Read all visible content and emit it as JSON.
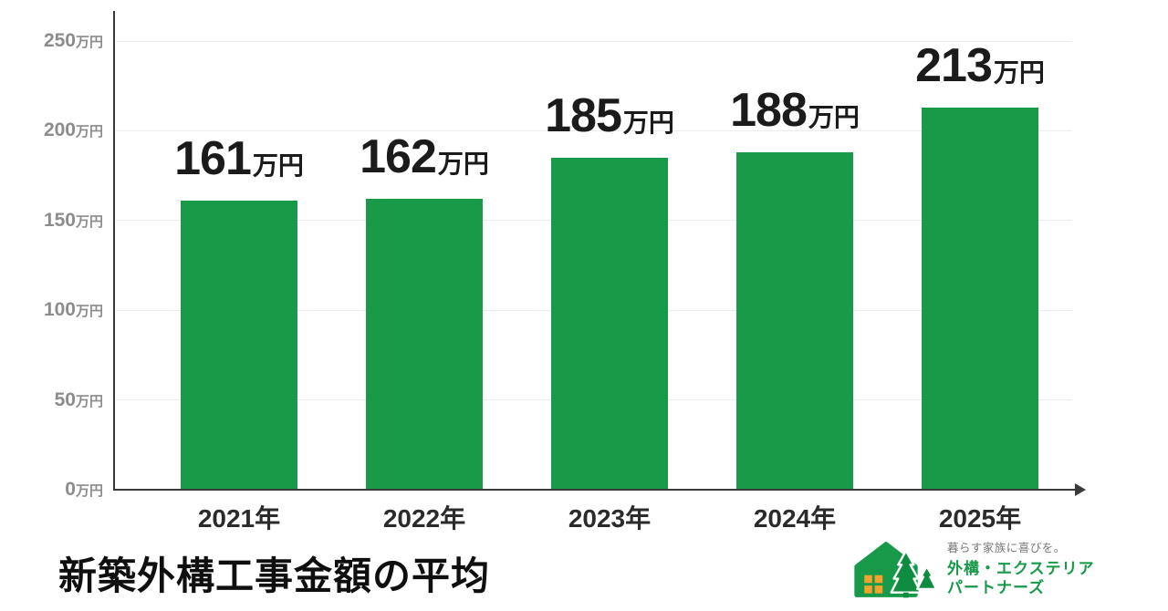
{
  "title": "新築外構工事金額の平均",
  "chart_data": {
    "type": "bar",
    "title": "新築外構工事金額の平均",
    "categories": [
      "2021年",
      "2022年",
      "2023年",
      "2024年",
      "2025年"
    ],
    "values": [
      161,
      162,
      185,
      188,
      213
    ],
    "unit": "万円",
    "xlabel": "",
    "ylabel": "",
    "ylim": [
      0,
      250
    ],
    "yticks": [
      0,
      50,
      100,
      150,
      200,
      250
    ],
    "ytick_suffix": "万円",
    "bar_color": "#189a48",
    "grid": true,
    "legend": "none"
  },
  "logo": {
    "tagline": "暮らす家族に喜びを。",
    "name_line1": "外構・エクステリア",
    "name_line2": "パートナーズ",
    "green": "#169a49",
    "tree_green": "#0e8c40",
    "orange": "#f2a22d"
  }
}
